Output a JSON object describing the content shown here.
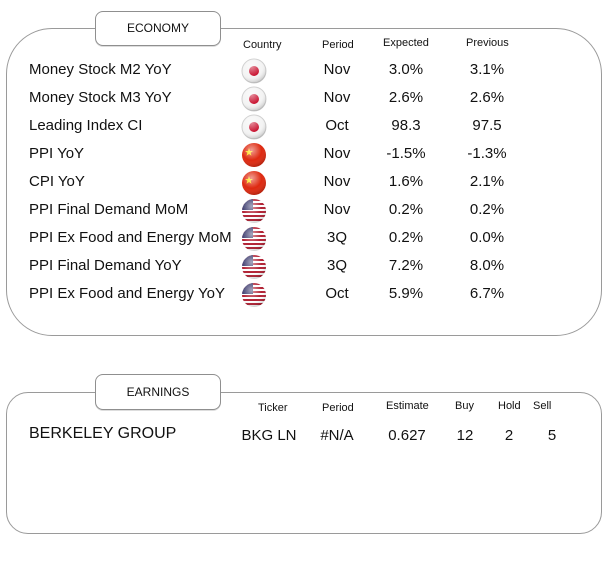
{
  "economy": {
    "tab_label": "ECONOMY",
    "headers": {
      "country": "Country",
      "period": "Period",
      "expected": "Expected",
      "previous": "Previous"
    },
    "rows": [
      {
        "name": "Money Stock M2 YoY",
        "country_icon": "japan-flag-icon",
        "period": "Nov",
        "expected": "3.0%",
        "previous": "3.1%"
      },
      {
        "name": "Money Stock M3 YoY",
        "country_icon": "japan-flag-icon",
        "period": "Nov",
        "expected": "2.6%",
        "previous": "2.6%"
      },
      {
        "name": "Leading Index CI",
        "country_icon": "japan-flag-icon",
        "period": "Oct",
        "expected": "98.3",
        "previous": "97.5"
      },
      {
        "name": "PPI YoY",
        "country_icon": "china-flag-icon",
        "period": "Nov",
        "expected": "-1.5%",
        "previous": "-1.3%"
      },
      {
        "name": "CPI YoY",
        "country_icon": "china-flag-icon",
        "period": "Nov",
        "expected": "1.6%",
        "previous": "2.1%"
      },
      {
        "name": "PPI Final Demand MoM",
        "country_icon": "usa-flag-icon",
        "period": "Nov",
        "expected": "0.2%",
        "previous": "0.2%"
      },
      {
        "name": "PPI Ex Food and Energy MoM",
        "country_icon": "usa-flag-icon",
        "period": "3Q",
        "expected": "0.2%",
        "previous": "0.0%"
      },
      {
        "name": "PPI Final Demand YoY",
        "country_icon": "usa-flag-icon",
        "period": "3Q",
        "expected": "7.2%",
        "previous": "8.0%"
      },
      {
        "name": "PPI Ex Food and Energy YoY",
        "country_icon": "usa-flag-icon",
        "period": "Oct",
        "expected": "5.9%",
        "previous": "6.7%"
      }
    ]
  },
  "earnings": {
    "tab_label": "EARNINGS",
    "headers": {
      "ticker": "Ticker",
      "period": "Period",
      "estimate": "Estimate",
      "buy": "Buy",
      "hold": "Hold",
      "sell": "Sell"
    },
    "rows": [
      {
        "name": "BERKELEY GROUP",
        "ticker": "BKG LN",
        "period": "#N/A",
        "estimate": "0.627",
        "buy": "12",
        "hold": "2",
        "sell": "5"
      }
    ]
  },
  "colors": {
    "border": "#9a9a9a",
    "japan_red": "#c8102e",
    "china_red": "#de2910",
    "usa_blue": "#3c3b6e"
  }
}
